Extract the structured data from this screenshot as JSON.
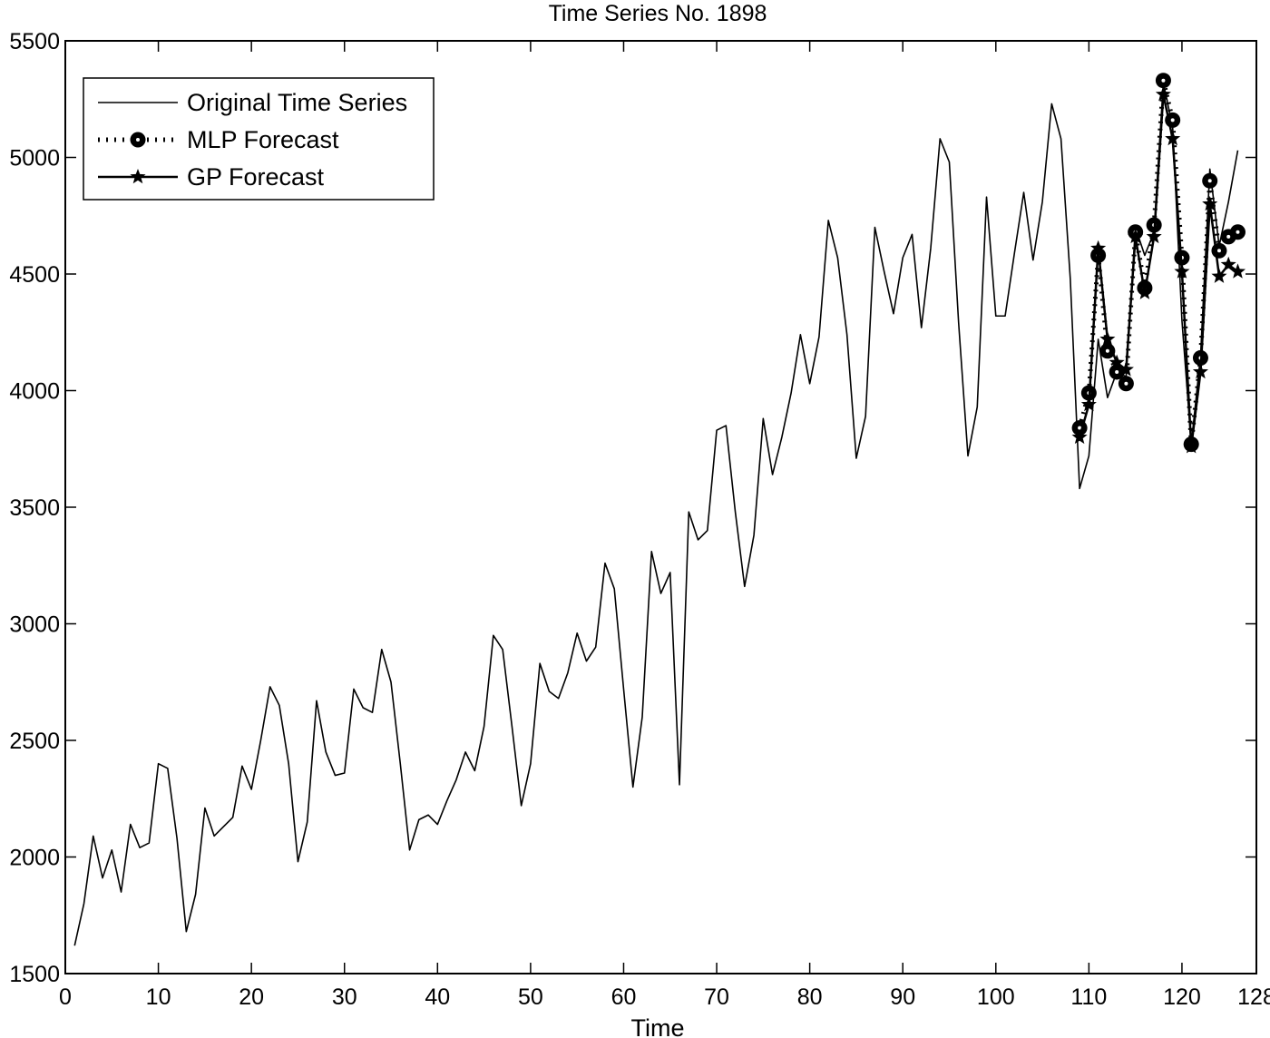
{
  "chart_data": {
    "type": "line",
    "title": "Time Series No. 1898",
    "xlabel": "Time",
    "ylabel": "",
    "xlim": [
      0,
      128
    ],
    "ylim": [
      1500,
      5500
    ],
    "xticks": [
      0,
      10,
      20,
      30,
      40,
      50,
      60,
      70,
      80,
      90,
      100,
      110,
      120,
      128
    ],
    "yticks": [
      1500,
      2000,
      2500,
      3000,
      3500,
      4000,
      4500,
      5000,
      5500
    ],
    "grid": false,
    "legend_position": "top-left",
    "series": [
      {
        "name": "Original Time Series",
        "style": "thin-line",
        "x": [
          1,
          2,
          3,
          4,
          5,
          6,
          7,
          8,
          9,
          10,
          11,
          12,
          13,
          14,
          15,
          16,
          17,
          18,
          19,
          20,
          21,
          22,
          23,
          24,
          25,
          26,
          27,
          28,
          29,
          30,
          31,
          32,
          33,
          34,
          35,
          36,
          37,
          38,
          39,
          40,
          41,
          42,
          43,
          44,
          45,
          46,
          47,
          48,
          49,
          50,
          51,
          52,
          53,
          54,
          55,
          56,
          57,
          58,
          59,
          60,
          61,
          62,
          63,
          64,
          65,
          66,
          67,
          68,
          69,
          70,
          71,
          72,
          73,
          74,
          75,
          76,
          77,
          78,
          79,
          80,
          81,
          82,
          83,
          84,
          85,
          86,
          87,
          88,
          89,
          90,
          91,
          92,
          93,
          94,
          95,
          96,
          97,
          98,
          99,
          100,
          101,
          102,
          103,
          104,
          105,
          106,
          107,
          108,
          109,
          110,
          111,
          112,
          113,
          114,
          115,
          116,
          117,
          118,
          119,
          120,
          121,
          122,
          123,
          124,
          125,
          126
        ],
        "values": [
          1620,
          1800,
          2090,
          1910,
          2030,
          1850,
          2140,
          2040,
          2060,
          2400,
          2380,
          2080,
          1680,
          1840,
          2210,
          2090,
          2130,
          2170,
          2390,
          2290,
          2500,
          2730,
          2650,
          2400,
          1980,
          2150,
          2670,
          2450,
          2350,
          2360,
          2720,
          2640,
          2620,
          2890,
          2750,
          2400,
          2030,
          2160,
          2180,
          2140,
          2240,
          2330,
          2450,
          2370,
          2560,
          2950,
          2890,
          2560,
          2220,
          2400,
          2830,
          2710,
          2680,
          2790,
          2960,
          2840,
          2900,
          3260,
          3150,
          2720,
          2300,
          2600,
          3310,
          3130,
          3220,
          2310,
          3480,
          3360,
          3400,
          3830,
          3850,
          3480,
          3160,
          3380,
          3880,
          3640,
          3800,
          3990,
          4240,
          4030,
          4230,
          4730,
          4570,
          4240,
          3710,
          3890,
          4700,
          4510,
          4330,
          4570,
          4670,
          4270,
          4610,
          5080,
          4980,
          4290,
          3720,
          3930,
          4830,
          4320,
          4320,
          4590,
          4850,
          4560,
          4810,
          5230,
          5080,
          4480,
          3580,
          3720,
          4220,
          3970,
          4080,
          4060,
          4700,
          4580,
          4680,
          5320,
          5130,
          4300,
          3770,
          4150,
          4950,
          4620,
          4810,
          5030
        ]
      },
      {
        "name": "MLP Forecast",
        "style": "dotted-circle",
        "x": [
          109,
          110,
          111,
          112,
          113,
          114,
          115,
          116,
          117,
          118,
          119,
          120,
          121,
          122,
          123,
          124,
          125,
          126
        ],
        "values": [
          3840,
          3990,
          4580,
          4170,
          4080,
          4030,
          4680,
          4440,
          4710,
          5330,
          5160,
          4570,
          3770,
          4140,
          4900,
          4600,
          4660,
          4680
        ]
      },
      {
        "name": "GP Forecast",
        "style": "solid-star",
        "x": [
          109,
          110,
          111,
          112,
          113,
          114,
          115,
          116,
          117,
          118,
          119,
          120,
          121,
          122,
          123,
          124,
          125,
          126
        ],
        "values": [
          3800,
          3940,
          4610,
          4220,
          4120,
          4090,
          4660,
          4420,
          4660,
          5270,
          5080,
          4510,
          3760,
          4080,
          4800,
          4490,
          4540,
          4510
        ]
      }
    ]
  }
}
